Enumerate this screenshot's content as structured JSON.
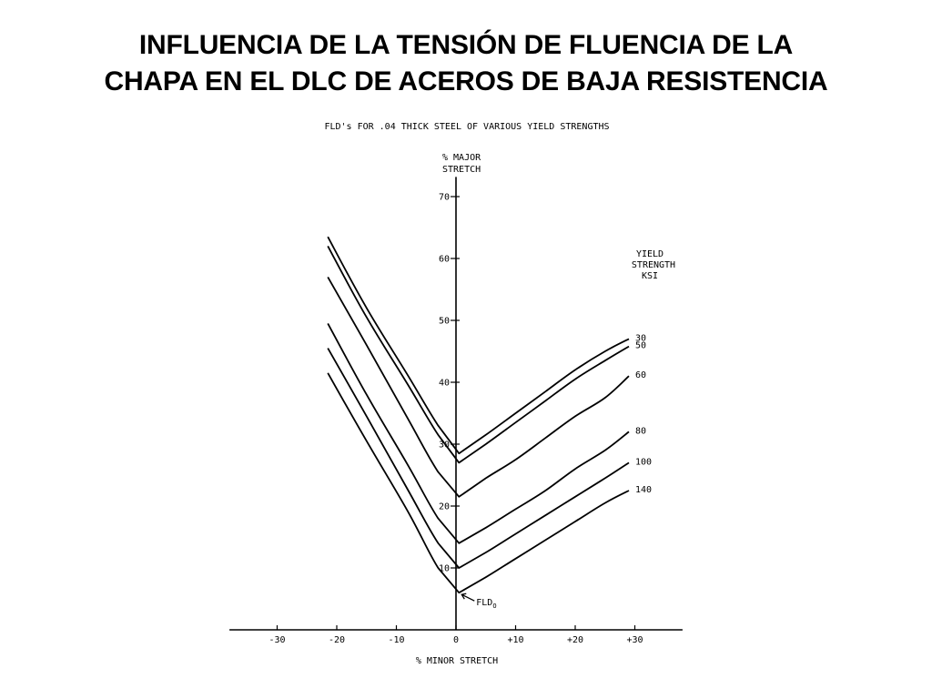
{
  "slide": {
    "title_line1": "INFLUENCIA DE LA TENSIÓN DE FLUENCIA DE LA",
    "title_line2": "CHAPA EN EL DLC DE ACEROS DE BAJA RESISTENCIA"
  },
  "chart_data": {
    "type": "line",
    "title": "FLD's FOR .04 THICK STEEL OF VARIOUS YIELD STRENGTHS",
    "ylabel_line1": "% MAJOR",
    "ylabel_line2": "STRETCH",
    "xlabel": "% MINOR STRETCH",
    "legend_title_line1": "YIELD",
    "legend_title_line2": "STRENGTH",
    "legend_title_line3": "KSI",
    "annotation": "FLD",
    "annotation_sub": "O",
    "xlim": [
      -38,
      38
    ],
    "ylim": [
      0,
      72
    ],
    "x_ticks": [
      {
        "value": -30,
        "label": "-30"
      },
      {
        "value": -20,
        "label": "-20"
      },
      {
        "value": -10,
        "label": "-10"
      },
      {
        "value": 0,
        "label": "0"
      },
      {
        "value": 10,
        "label": "+10"
      },
      {
        "value": 20,
        "label": "+20"
      },
      {
        "value": 30,
        "label": "+30"
      }
    ],
    "y_ticks": [
      {
        "value": 10,
        "label": "10"
      },
      {
        "value": 20,
        "label": "20"
      },
      {
        "value": 30,
        "label": "30"
      },
      {
        "value": 40,
        "label": "40"
      },
      {
        "value": 50,
        "label": "50"
      },
      {
        "value": 60,
        "label": "60"
      },
      {
        "value": 70,
        "label": "70"
      }
    ],
    "grid": false,
    "series": [
      {
        "name": "30",
        "points": [
          [
            -21.5,
            63.5
          ],
          [
            -15,
            52
          ],
          [
            -8,
            41
          ],
          [
            -3,
            33
          ],
          [
            0.5,
            28.5
          ],
          [
            5,
            31.5
          ],
          [
            10,
            35
          ],
          [
            15,
            38.5
          ],
          [
            20,
            42
          ],
          [
            25,
            45
          ],
          [
            29,
            47
          ]
        ]
      },
      {
        "name": "50",
        "points": [
          [
            -21.5,
            62
          ],
          [
            -15,
            50.5
          ],
          [
            -8,
            39.5
          ],
          [
            -3,
            31.5
          ],
          [
            0.5,
            27
          ],
          [
            5,
            30
          ],
          [
            10,
            33.5
          ],
          [
            15,
            37
          ],
          [
            20,
            40.5
          ],
          [
            25,
            43.5
          ],
          [
            29,
            45.8
          ]
        ]
      },
      {
        "name": "60",
        "points": [
          [
            -21.5,
            57
          ],
          [
            -15,
            46
          ],
          [
            -8,
            34
          ],
          [
            -3,
            25.5
          ],
          [
            0.5,
            21.5
          ],
          [
            5,
            24.5
          ],
          [
            10,
            27.5
          ],
          [
            15,
            31
          ],
          [
            20,
            34.5
          ],
          [
            25,
            37.5
          ],
          [
            29,
            41
          ]
        ]
      },
      {
        "name": "80",
        "points": [
          [
            -21.5,
            49.5
          ],
          [
            -15,
            38
          ],
          [
            -8,
            26.5
          ],
          [
            -3,
            18
          ],
          [
            0.5,
            14
          ],
          [
            5,
            16.5
          ],
          [
            10,
            19.5
          ],
          [
            15,
            22.5
          ],
          [
            20,
            26
          ],
          [
            25,
            29
          ],
          [
            29,
            32
          ]
        ]
      },
      {
        "name": "100",
        "points": [
          [
            -21.5,
            45.5
          ],
          [
            -15,
            34.5
          ],
          [
            -8,
            22.5
          ],
          [
            -3,
            14
          ],
          [
            0.5,
            10
          ],
          [
            5,
            12.5
          ],
          [
            10,
            15.5
          ],
          [
            15,
            18.5
          ],
          [
            20,
            21.5
          ],
          [
            25,
            24.5
          ],
          [
            29,
            27
          ]
        ]
      },
      {
        "name": "140",
        "points": [
          [
            -21.5,
            41.5
          ],
          [
            -15,
            30.5
          ],
          [
            -8,
            19
          ],
          [
            -3,
            10
          ],
          [
            0.5,
            6
          ],
          [
            5,
            8.5
          ],
          [
            10,
            11.5
          ],
          [
            15,
            14.5
          ],
          [
            20,
            17.5
          ],
          [
            25,
            20.5
          ],
          [
            29,
            22.5
          ]
        ]
      }
    ]
  }
}
